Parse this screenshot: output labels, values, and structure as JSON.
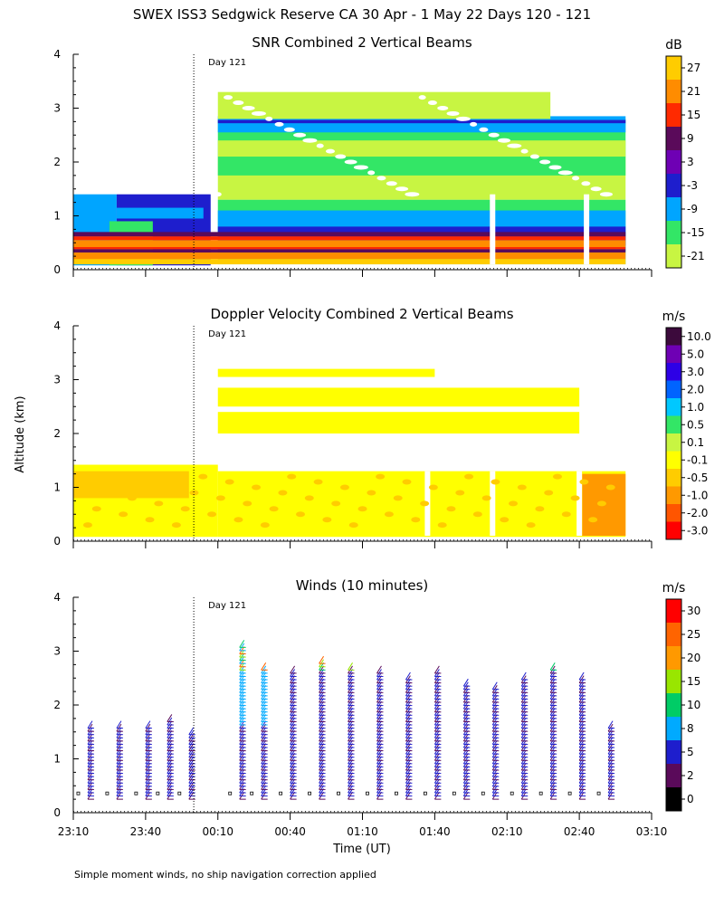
{
  "page_title": "SWEX ISS3 Sedgwick Reserve CA  30 Apr -  1 May 22 Days 120 - 121",
  "ylabel": "Altitude (km)",
  "xlabel": "Time (UT)",
  "footnote": "Simple moment winds, no ship navigation correction applied",
  "day_marker": "Day 121",
  "chart_data": [
    {
      "type": "heatmap",
      "title": "SNR Combined 2 Vertical Beams",
      "unit": "dB",
      "ylim": [
        0,
        4
      ],
      "yticks": [
        "0",
        "1",
        "2",
        "3",
        "4"
      ],
      "colorbar_labels": [
        "27",
        "21",
        "15",
        "9",
        "3",
        "-3",
        "-9",
        "-15",
        "-21"
      ],
      "colors": [
        "#ffcc00",
        "#ff8c00",
        "#ff2a00",
        "#5a0a5a",
        "#6e00b4",
        "#1e1ecd",
        "#00a5ff",
        "#33e666",
        "#c8f542"
      ],
      "layers": [
        {
          "t0": 0,
          "t1": 0.3,
          "y0": 0.08,
          "y1": 1.4,
          "color": "#00a5ff"
        },
        {
          "t0": 0.3,
          "t1": 0.95,
          "y0": 0.08,
          "y1": 1.4,
          "color": "#1e1ecd"
        },
        {
          "t0": 0.25,
          "t1": 0.55,
          "y0": 0.08,
          "y1": 0.9,
          "color": "#33e666"
        },
        {
          "t0": 0.0,
          "t1": 0.6,
          "y0": 0.1,
          "y1": 0.28,
          "color": "#ff8c00"
        },
        {
          "t0": 1.0,
          "t1": 3.82,
          "y0": 0.1,
          "y1": 1.3,
          "color": "#33e666"
        },
        {
          "t0": 1.0,
          "t1": 3.82,
          "y0": 1.3,
          "y1": 2.1,
          "color": "#c8f542"
        },
        {
          "t0": 1.0,
          "t1": 3.82,
          "y0": 0.35,
          "y1": 1.1,
          "color": "#00a5ff"
        },
        {
          "t0": 1.0,
          "t1": 3.82,
          "y0": 0.45,
          "y1": 0.8,
          "color": "#1e1ecd"
        },
        {
          "t0": 0.3,
          "t1": 0.9,
          "y0": 0.95,
          "y1": 1.15,
          "color": "#00a5ff"
        },
        {
          "t0": 0.0,
          "t1": 3.82,
          "y0": 0.1,
          "y1": 0.2,
          "color": "#ffcc00"
        },
        {
          "t0": 0.0,
          "t1": 3.82,
          "y0": 0.2,
          "y1": 0.32,
          "color": "#ff8c00"
        },
        {
          "t0": 0.0,
          "t1": 3.82,
          "y0": 0.32,
          "y1": 0.38,
          "color": "#5a0a5a"
        },
        {
          "t0": 0.0,
          "t1": 3.82,
          "y0": 0.38,
          "y1": 0.42,
          "color": "#ff2a00"
        },
        {
          "t0": 0.0,
          "t1": 3.82,
          "y0": 0.42,
          "y1": 0.55,
          "color": "#ff8c00"
        },
        {
          "t0": 0.0,
          "t1": 3.82,
          "y0": 0.55,
          "y1": 0.62,
          "color": "#ff2a00"
        },
        {
          "t0": 0.0,
          "t1": 3.82,
          "y0": 0.62,
          "y1": 0.7,
          "color": "#5a0a5a"
        },
        {
          "t0": 1.0,
          "t1": 3.82,
          "y0": 1.75,
          "y1": 2.8,
          "color": "#33e666"
        },
        {
          "t0": 1.0,
          "t1": 3.82,
          "y0": 2.55,
          "y1": 2.85,
          "color": "#00a5ff"
        },
        {
          "t0": 1.0,
          "t1": 3.82,
          "y0": 2.72,
          "y1": 2.78,
          "color": "#1e1ecd"
        },
        {
          "t0": 1.0,
          "t1": 3.82,
          "y0": 2.1,
          "y1": 2.4,
          "color": "#c8f542"
        },
        {
          "t0": 1.0,
          "t1": 3.3,
          "y0": 2.8,
          "y1": 3.3,
          "color": "#c8f542"
        }
      ]
    },
    {
      "type": "heatmap",
      "title": "Doppler Velocity Combined 2 Vertical Beams",
      "unit": "m/s",
      "ylim": [
        0,
        4
      ],
      "yticks": [
        "0",
        "1",
        "2",
        "3",
        "4"
      ],
      "colorbar_labels": [
        "10.0",
        "5.0",
        "3.0",
        "2.0",
        "1.0",
        "0.5",
        "0.1",
        "-0.1",
        "-0.5",
        "-1.0",
        "-2.0",
        "-3.0"
      ],
      "colors": [
        "#3c0a3c",
        "#6e00b4",
        "#2d00e6",
        "#0064ff",
        "#00c8ff",
        "#33e666",
        "#c8f542",
        "#ffff00",
        "#ffcc00",
        "#ff9900",
        "#ff5500",
        "#ff0000"
      ],
      "layers": [
        {
          "t0": 0,
          "t1": 1.0,
          "y0": 0.08,
          "y1": 1.42,
          "color": "#ffff00"
        },
        {
          "t0": 1.0,
          "t1": 3.82,
          "y0": 0.08,
          "y1": 1.3,
          "color": "#ffff00"
        },
        {
          "t0": 1.0,
          "t1": 3.5,
          "y0": 2.0,
          "y1": 2.4,
          "color": "#ffff00"
        },
        {
          "t0": 1.0,
          "t1": 3.5,
          "y0": 2.5,
          "y1": 2.85,
          "color": "#ffff00"
        },
        {
          "t0": 1.0,
          "t1": 2.5,
          "y0": 3.05,
          "y1": 3.2,
          "color": "#ffff00"
        },
        {
          "t0": 0.0,
          "t1": 0.8,
          "y0": 0.8,
          "y1": 1.3,
          "color": "#ffcc00"
        },
        {
          "t0": 3.52,
          "t1": 3.82,
          "y0": 0.1,
          "y1": 1.25,
          "color": "#ff9900"
        }
      ]
    },
    {
      "type": "wind_barbs",
      "title": "Winds (10 minutes)",
      "unit": "m/s",
      "ylim": [
        0,
        4
      ],
      "yticks": [
        "0",
        "1",
        "2",
        "3",
        "4"
      ],
      "colorbar_labels": [
        "30",
        "25",
        "20",
        "15",
        "10",
        "8",
        "5",
        "2",
        "0"
      ],
      "colors": [
        "#ff0000",
        "#ff6400",
        "#ff9900",
        "#99e600",
        "#00cc66",
        "#00aaff",
        "#1e1ecd",
        "#5a0a5a",
        "#000000"
      ],
      "profiles": [
        {
          "t": 0.1,
          "top": 1.6,
          "speed": 5
        },
        {
          "t": 0.3,
          "top": 1.6,
          "speed": 5
        },
        {
          "t": 0.5,
          "top": 1.6,
          "speed": 5
        },
        {
          "t": 0.65,
          "top": 1.7,
          "speed": 8
        },
        {
          "t": 0.8,
          "top": 1.5,
          "speed": 5
        },
        {
          "t": 1.15,
          "top": 3.1,
          "speed": 10
        },
        {
          "t": 1.3,
          "top": 2.7,
          "speed": 10
        },
        {
          "t": 1.5,
          "top": 2.6,
          "speed": 5
        },
        {
          "t": 1.7,
          "top": 2.8,
          "speed": 5
        },
        {
          "t": 1.9,
          "top": 2.7,
          "speed": 5
        },
        {
          "t": 2.1,
          "top": 2.6,
          "speed": 5
        },
        {
          "t": 2.3,
          "top": 2.5,
          "speed": 5
        },
        {
          "t": 2.5,
          "top": 2.6,
          "speed": 5
        },
        {
          "t": 2.7,
          "top": 2.4,
          "speed": 5
        },
        {
          "t": 2.9,
          "top": 2.3,
          "speed": 5
        },
        {
          "t": 3.1,
          "top": 2.5,
          "speed": 5
        },
        {
          "t": 3.3,
          "top": 2.7,
          "speed": 5
        },
        {
          "t": 3.5,
          "top": 2.5,
          "speed": 5
        },
        {
          "t": 3.7,
          "top": 1.6,
          "speed": 5
        }
      ],
      "upper_wind_colors": [
        "#00cc66",
        "#99e600",
        "#ff6400",
        "#00aaff"
      ]
    }
  ],
  "xaxis": {
    "ticks": [
      "23:10",
      "23:40",
      "00:10",
      "00:40",
      "01:10",
      "01:40",
      "02:10",
      "02:40",
      "03:10"
    ],
    "range_hours": 4.0,
    "day_boundary_hours": 0.8333
  }
}
